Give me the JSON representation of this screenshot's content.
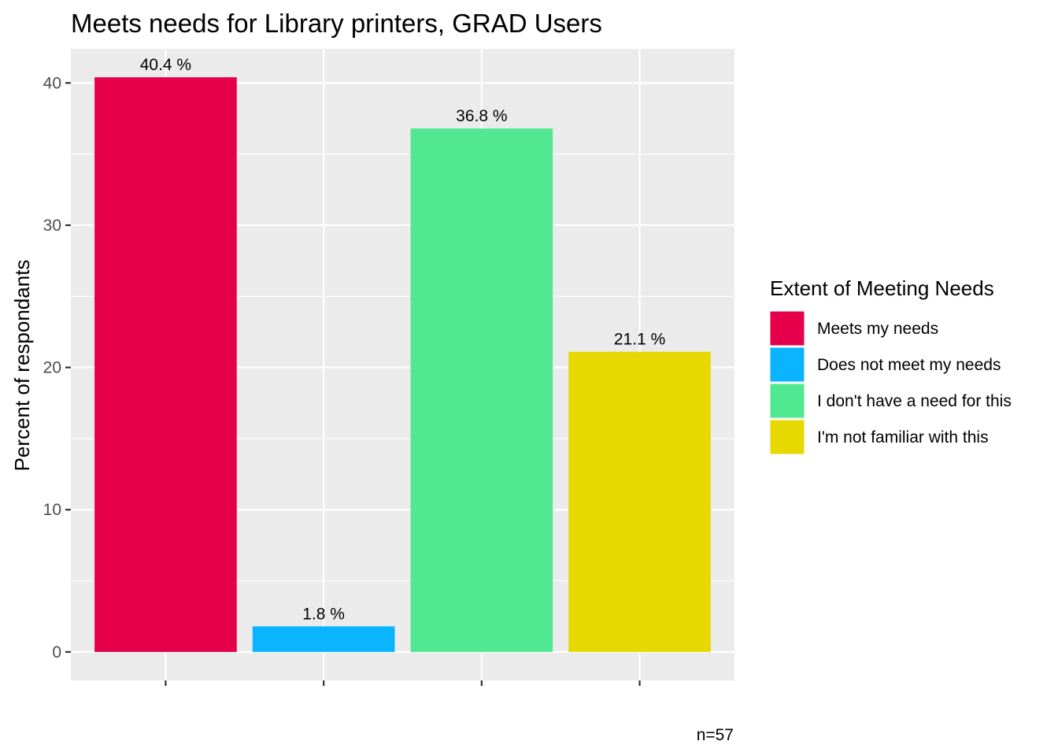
{
  "chart_data": {
    "type": "bar",
    "title": "Meets needs for Library printers, GRAD Users",
    "xlabel": "",
    "ylabel": "Percent of respondants",
    "categories": [
      "Meets my needs",
      "Does not meet my needs",
      "I don't have a need for this",
      "I'm not familiar with this"
    ],
    "values": [
      40.4,
      1.8,
      36.8,
      21.1
    ],
    "data_labels": [
      "40.4 %",
      "1.8 %",
      "36.8 %",
      "21.1 %"
    ],
    "colors": [
      "#E6004C",
      "#0AB4FF",
      "#50E991",
      "#E6D800"
    ],
    "ylim": [
      -2,
      42.4
    ],
    "yticks": [
      0,
      10,
      20,
      30,
      40
    ],
    "ytick_labels": [
      "0",
      "10",
      "20",
      "30",
      "40"
    ],
    "grid": true,
    "panel_background": "#EBEBEB",
    "legend": {
      "title": "Extent of Meeting Needs",
      "placement": "right",
      "entries": [
        "Meets my needs",
        "Does not meet my needs",
        "I don't have a need for this",
        "I'm not familiar with this"
      ]
    },
    "caption": "n=57"
  }
}
